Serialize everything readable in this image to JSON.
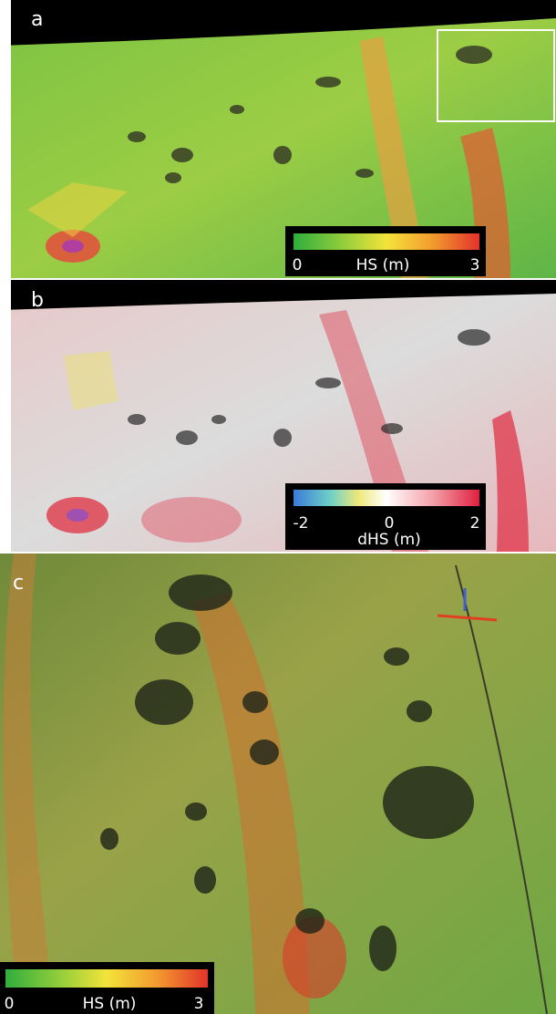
{
  "panels": [
    {
      "label": "a",
      "colorbar": {
        "title": "HS (m)",
        "ticks": [
          0,
          3
        ]
      }
    },
    {
      "label": "b",
      "colorbar": {
        "title": "dHS (m)",
        "ticks": [
          -2,
          0,
          2
        ]
      }
    },
    {
      "label": "c",
      "colorbar": {
        "title": "HS (m)",
        "ticks": [
          0,
          3
        ]
      }
    }
  ]
}
